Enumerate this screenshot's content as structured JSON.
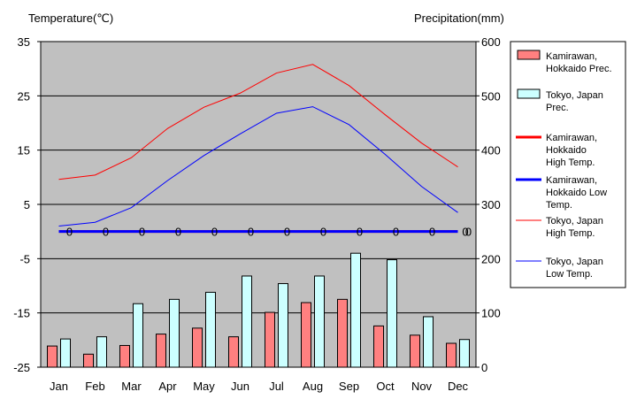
{
  "chart_data": {
    "type": "bar+line",
    "left_axis_title": "Temperature(℃)",
    "right_axis_title": "Precipitation(mm)",
    "categories": [
      "Jan",
      "Feb",
      "Mar",
      "Apr",
      "May",
      "Jun",
      "Jul",
      "Aug",
      "Sep",
      "Oct",
      "Nov",
      "Dec"
    ],
    "temp_range": [
      -25,
      35
    ],
    "temp_ticks": [
      -25,
      -15,
      -5,
      5,
      15,
      25,
      35
    ],
    "temp_tick_labels": [
      "-25",
      "-15",
      "-5",
      "5",
      "15",
      "25",
      "35"
    ],
    "precip_range": [
      0,
      600
    ],
    "precip_ticks": [
      0,
      100,
      200,
      300,
      400,
      500,
      600
    ],
    "precip_tick_labels": [
      "0",
      "100",
      "200",
      "300",
      "400",
      "500",
      "600"
    ],
    "grid": true,
    "legend_position": "right",
    "bar_series": [
      {
        "name": "Kamirawan, Hokkaido Prec.",
        "legend_lines": [
          "Kamirawan,",
          "Hokkaido Prec."
        ],
        "color": "#ff8080",
        "values": [
          39,
          24,
          40,
          61,
          72,
          56,
          101,
          119,
          125,
          76,
          59,
          44
        ]
      },
      {
        "name": "Tokyo, Japan Prec.",
        "legend_lines": [
          "Tokyo, Japan",
          "Prec."
        ],
        "color": "#ccffff",
        "values": [
          52,
          56,
          117,
          125,
          138,
          168,
          154,
          168,
          210,
          198,
          93,
          51
        ]
      }
    ],
    "line_series": [
      {
        "name": "Kamirawan, Hokkaido High Temp.",
        "legend_lines": [
          "Kamirawan,",
          "Hokkaido",
          "High Temp."
        ],
        "color": "#ff0000",
        "width": 3,
        "values": [
          0,
          0,
          0,
          0,
          0,
          0,
          0,
          0,
          0,
          0,
          0,
          0
        ],
        "show_hidden_behind": true
      },
      {
        "name": "Kamirawan, Hokkaido Low Temp.",
        "legend_lines": [
          "Kamirawan,",
          "Hokkaido Low",
          "Temp."
        ],
        "color": "#0000ff",
        "width": 3,
        "values": [
          0,
          0,
          0,
          0,
          0,
          0,
          0,
          0,
          0,
          0,
          0,
          0
        ]
      },
      {
        "name": "Tokyo, Japan High Temp.",
        "legend_lines": [
          "Tokyo, Japan",
          "High Temp."
        ],
        "color": "#ff0000",
        "width": 1,
        "values": [
          9.6,
          10.4,
          13.6,
          19.0,
          22.9,
          25.5,
          29.2,
          30.8,
          26.9,
          21.5,
          16.3,
          11.9
        ]
      },
      {
        "name": "Tokyo, Japan Low Temp.",
        "legend_lines": [
          "Tokyo, Japan",
          "Low Temp."
        ],
        "color": "#0000ff",
        "width": 1,
        "values": [
          1.0,
          1.7,
          4.4,
          9.4,
          14.0,
          18.0,
          21.8,
          23.0,
          19.7,
          14.2,
          8.3,
          3.5
        ]
      }
    ],
    "zero_labels": [
      "0",
      "0",
      "0",
      "0",
      "0",
      "0",
      "0",
      "0",
      "0",
      "0",
      "0",
      "0"
    ],
    "zero_labels_extra": "0",
    "colors": {
      "plot_bg": "#c0c0c0",
      "grid": "#000000",
      "frame": "#000000"
    }
  }
}
